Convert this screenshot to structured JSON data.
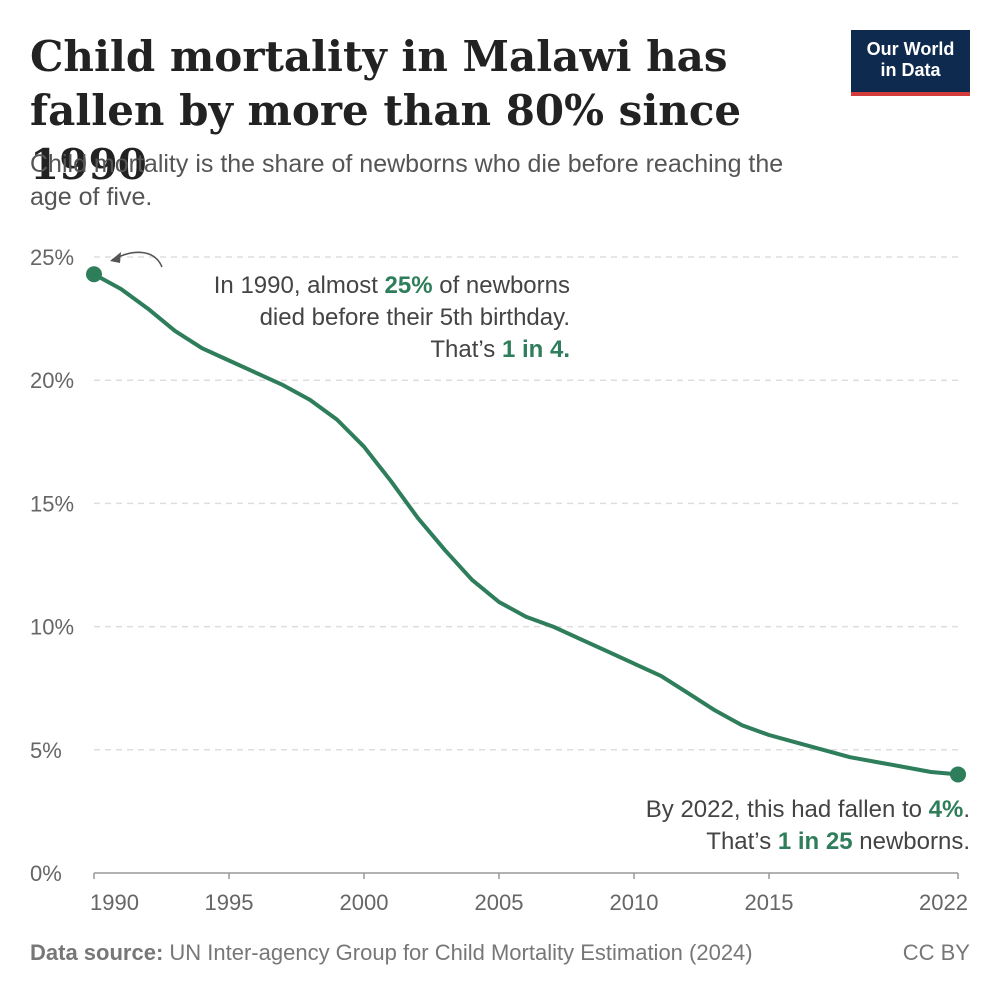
{
  "title": "Child mortality in Malawi has fallen by more than 80% since 1990",
  "subtitle": "Child mortality is the share of newborns who die before reaching the age of five.",
  "logo": {
    "line1": "Our World",
    "line2": "in Data"
  },
  "annotations": {
    "start": {
      "line1_pre": "In 1990, almost ",
      "line1_hl": "25%",
      "line1_post": " of newborns",
      "line2": "died before their 5th birthday.",
      "line3_pre": "That’s ",
      "line3_hl": "1 in 4."
    },
    "end": {
      "line1_pre": "By 2022, this had fallen to ",
      "line1_hl": "4%",
      "line1_post": ".",
      "line2_pre": "That’s ",
      "line2_hl": "1 in 25",
      "line2_post": " newborns."
    }
  },
  "footer": {
    "source_label": "Data source:",
    "source_text": " UN Inter-agency Group for Child Mortality Estimation (2024)",
    "license": "CC BY"
  },
  "colors": {
    "line": "#2e7d5b",
    "grid": "#dddddd",
    "axis": "#999999"
  },
  "chart_data": {
    "type": "line",
    "x": [
      1990,
      1991,
      1992,
      1993,
      1994,
      1995,
      1996,
      1997,
      1998,
      1999,
      2000,
      2001,
      2002,
      2003,
      2004,
      2005,
      2006,
      2007,
      2008,
      2009,
      2010,
      2011,
      2012,
      2013,
      2014,
      2015,
      2016,
      2017,
      2018,
      2019,
      2020,
      2021,
      2022
    ],
    "series": [
      {
        "values": [
          24.3,
          23.7,
          22.9,
          22.0,
          21.3,
          20.8,
          20.3,
          19.8,
          19.2,
          18.4,
          17.3,
          15.9,
          14.4,
          13.1,
          11.9,
          11.0,
          10.4,
          10.0,
          9.5,
          9.0,
          8.5,
          8.0,
          7.3,
          6.6,
          6.0,
          5.6,
          5.3,
          5.0,
          4.7,
          4.5,
          4.3,
          4.1,
          4.0
        ]
      }
    ],
    "xticks": [
      "1990",
      "1995",
      "2000",
      "2005",
      "2010",
      "2015",
      "2022"
    ],
    "yticks": [
      "0%",
      "5%",
      "10%",
      "15%",
      "20%",
      "25%"
    ],
    "xlim": [
      1990,
      2022
    ],
    "ylim": [
      0,
      25
    ],
    "grid": true
  }
}
